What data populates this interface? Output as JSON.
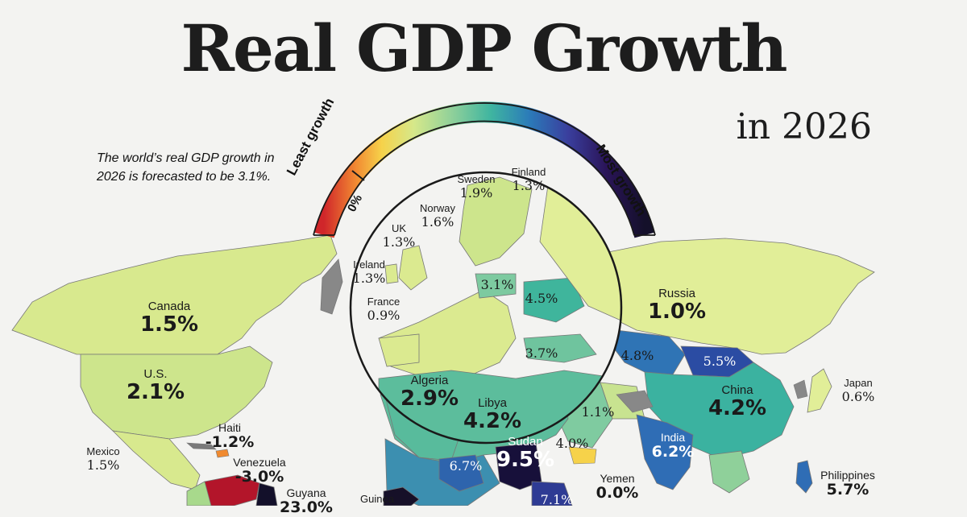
{
  "title": "Real GDP Growth",
  "subtitle": "in 2026",
  "intro": "The world’s real GDP growth in 2026 is forecasted to be 3.1%.",
  "legend": {
    "low_label": "Least growth",
    "high_label": "Most growth",
    "zero_label": "0%",
    "colors": [
      "#d0262a",
      "#f28a32",
      "#f6d24a",
      "#d6e88a",
      "#8fd09a",
      "#3fb5a0",
      "#2b7bb9",
      "#3a3f9e",
      "#2a1458",
      "#14102a"
    ]
  },
  "regions": [
    {
      "name": "Canada",
      "value": "1.5%",
      "num": 1.5
    },
    {
      "name": "U.S.",
      "value": "2.1%",
      "num": 2.1
    },
    {
      "name": "Mexico",
      "value": "1.5%",
      "num": 1.5
    },
    {
      "name": "Haiti",
      "value": "-1.2%",
      "num": -1.2
    },
    {
      "name": "Venezuela",
      "value": "-3.0%",
      "num": -3.0
    },
    {
      "name": "Guyana",
      "value": "23.0%",
      "num": 23.0
    },
    {
      "name": "Ireland",
      "value": "1.3%",
      "num": 1.3
    },
    {
      "name": "UK",
      "value": "1.3%",
      "num": 1.3
    },
    {
      "name": "Norway",
      "value": "1.6%",
      "num": 1.6
    },
    {
      "name": "Sweden",
      "value": "1.9%",
      "num": 1.9
    },
    {
      "name": "Finland",
      "value": "1.3%",
      "num": 1.3
    },
    {
      "name": "France",
      "value": "0.9%",
      "num": 0.9
    },
    {
      "name": "",
      "value": "3.1%",
      "num": 3.1
    },
    {
      "name": "",
      "value": "4.5%",
      "num": 4.5
    },
    {
      "name": "",
      "value": "3.7%",
      "num": 3.7
    },
    {
      "name": "Russia",
      "value": "1.0%",
      "num": 1.0
    },
    {
      "name": "",
      "value": "4.8%",
      "num": 4.8
    },
    {
      "name": "",
      "value": "5.5%",
      "num": 5.5
    },
    {
      "name": "China",
      "value": "4.2%",
      "num": 4.2
    },
    {
      "name": "Japan",
      "value": "0.6%",
      "num": 0.6
    },
    {
      "name": "Algeria",
      "value": "2.9%",
      "num": 2.9
    },
    {
      "name": "Libya",
      "value": "4.2%",
      "num": 4.2
    },
    {
      "name": "",
      "value": "1.1%",
      "num": 1.1
    },
    {
      "name": "",
      "value": "4.0%",
      "num": 4.0
    },
    {
      "name": "India",
      "value": "6.2%",
      "num": 6.2
    },
    {
      "name": "Sudan",
      "value": "9.5%",
      "num": 9.5
    },
    {
      "name": "",
      "value": "6.7%",
      "num": 6.7
    },
    {
      "name": "Yemen",
      "value": "0.0%",
      "num": 0.0
    },
    {
      "name": "",
      "value": "7.1%",
      "num": 7.1
    },
    {
      "name": "Philippines",
      "value": "5.7%",
      "num": 5.7
    },
    {
      "name": "Guinea",
      "value": "",
      "num": null
    }
  ]
}
